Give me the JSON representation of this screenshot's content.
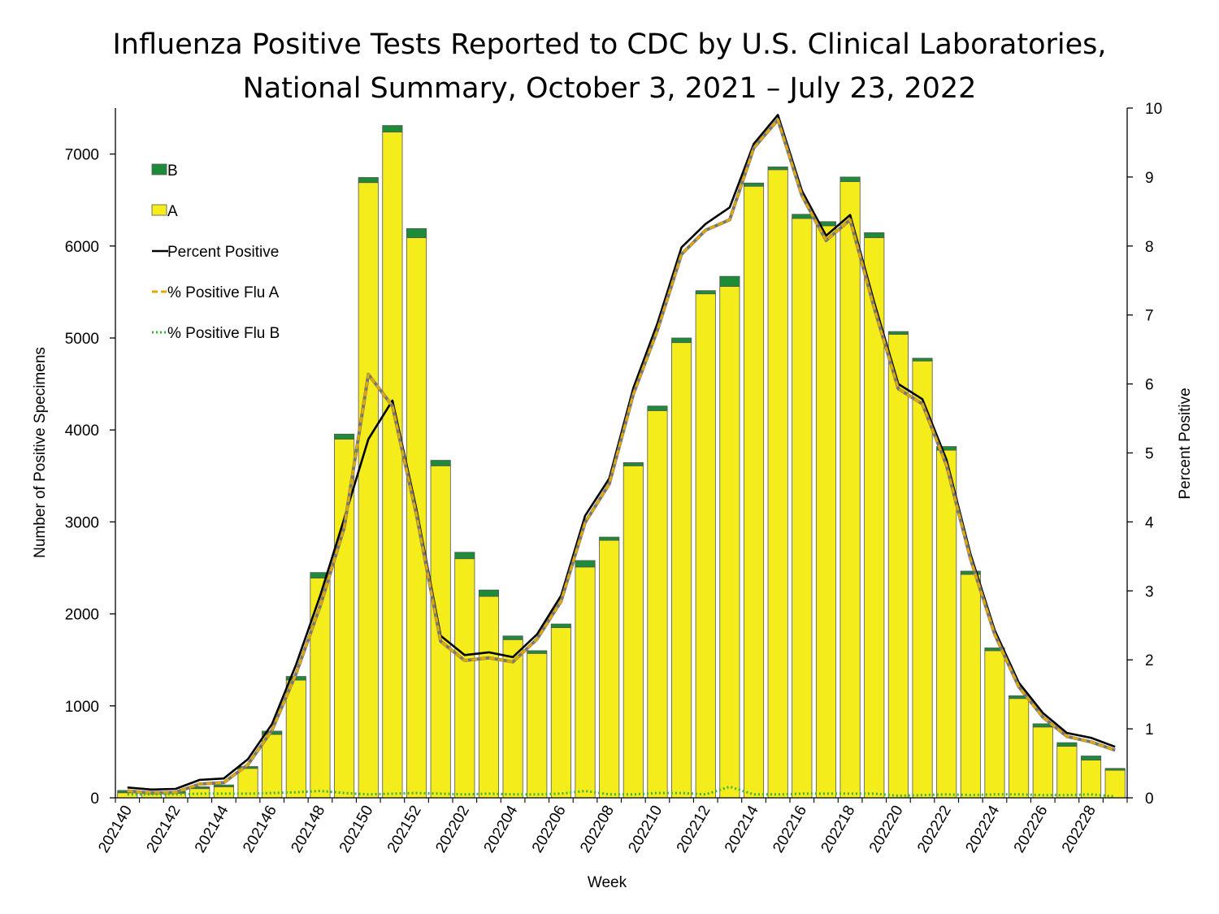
{
  "chart_data": {
    "type": "bar",
    "title_line1": "Influenza Positive Tests Reported to CDC by U.S. Clinical Laboratories,",
    "title_line2": "National Summary, October 3, 2021 – July 23, 2022",
    "xlabel": "Week",
    "ylabel": "Number of Positive Specimens",
    "y2label": "Percent Positive",
    "ylim": [
      0,
      7500
    ],
    "y2lim": [
      0,
      10
    ],
    "y_ticks": [
      0,
      1000,
      2000,
      3000,
      4000,
      5000,
      6000,
      7000
    ],
    "y2_ticks": [
      0,
      1,
      2,
      3,
      4,
      5,
      6,
      7,
      8,
      9,
      10
    ],
    "weeks": [
      "202140",
      "202141",
      "202142",
      "202143",
      "202144",
      "202145",
      "202146",
      "202147",
      "202148",
      "202149",
      "202150",
      "202151",
      "202152",
      "202201",
      "202202",
      "202203",
      "202204",
      "202205",
      "202206",
      "202207",
      "202208",
      "202209",
      "202210",
      "202211",
      "202212",
      "202213",
      "202214",
      "202215",
      "202216",
      "202217",
      "202218",
      "202219",
      "202220",
      "202221",
      "202222",
      "202223",
      "202224",
      "202225",
      "202226",
      "202227",
      "202228",
      "202229"
    ],
    "x_tick_labels": [
      "202140",
      "202142",
      "202144",
      "202146",
      "202148",
      "202150",
      "202152",
      "202202",
      "202204",
      "202206",
      "202208",
      "202210",
      "202212",
      "202214",
      "202216",
      "202218",
      "202220",
      "202222",
      "202224",
      "202226",
      "202228"
    ],
    "legend": {
      "placement": "top-left"
    },
    "series": [
      {
        "name": "B",
        "kind": "bar-stacked",
        "color": "#1e8b3a",
        "values": [
          25,
          22,
          20,
          20,
          20,
          20,
          35,
          40,
          60,
          55,
          55,
          70,
          100,
          60,
          70,
          70,
          40,
          30,
          40,
          70,
          35,
          35,
          50,
          50,
          35,
          110,
          35,
          30,
          45,
          45,
          50,
          55,
          30,
          30,
          40,
          35,
          30,
          30,
          35,
          40,
          45,
          20
        ]
      },
      {
        "name": "A",
        "kind": "bar-stacked",
        "color": "#f5ec1c",
        "values": [
          55,
          48,
          50,
          100,
          120,
          320,
          690,
          1280,
          2390,
          3900,
          6690,
          7240,
          6090,
          3610,
          2600,
          2190,
          1720,
          1570,
          1850,
          2510,
          2800,
          3610,
          4210,
          4950,
          5480,
          5560,
          6650,
          6830,
          6300,
          6220,
          6700,
          6090,
          5040,
          4750,
          3780,
          2430,
          1600,
          1080,
          770,
          560,
          410,
          300
        ]
      },
      {
        "name": "Percent Positive",
        "kind": "line",
        "color": "#000000",
        "values": [
          0.15,
          0.12,
          0.13,
          0.26,
          0.28,
          0.56,
          1.07,
          1.93,
          2.93,
          4.05,
          5.2,
          5.76,
          4.18,
          2.35,
          2.07,
          2.11,
          2.04,
          2.37,
          2.93,
          4.09,
          4.63,
          5.94,
          6.88,
          7.98,
          8.32,
          8.56,
          9.48,
          9.9,
          8.8,
          8.15,
          8.45,
          7.18,
          6.0,
          5.78,
          4.9,
          3.53,
          2.43,
          1.67,
          1.23,
          0.94,
          0.87,
          0.74
        ]
      },
      {
        "name": "% Positive Flu A",
        "kind": "line-dashed",
        "color": "#e0a800",
        "values": [
          0.1,
          0.07,
          0.08,
          0.2,
          0.22,
          0.48,
          0.98,
          1.8,
          2.78,
          3.92,
          6.14,
          5.68,
          4.1,
          2.27,
          1.99,
          2.03,
          1.97,
          2.3,
          2.85,
          3.99,
          4.55,
          5.85,
          6.78,
          7.88,
          8.23,
          8.38,
          9.42,
          9.83,
          8.73,
          8.08,
          8.38,
          7.1,
          5.93,
          5.71,
          4.82,
          3.46,
          2.37,
          1.61,
          1.17,
          0.89,
          0.81,
          0.69
        ]
      },
      {
        "name": "% Positive Flu B",
        "kind": "line-dotted",
        "color": "#3cb43c",
        "values": [
          0.05,
          0.05,
          0.05,
          0.06,
          0.06,
          0.06,
          0.07,
          0.08,
          0.1,
          0.07,
          0.05,
          0.06,
          0.07,
          0.06,
          0.05,
          0.06,
          0.05,
          0.05,
          0.06,
          0.1,
          0.05,
          0.05,
          0.07,
          0.07,
          0.05,
          0.16,
          0.05,
          0.05,
          0.06,
          0.06,
          0.06,
          0.06,
          0.03,
          0.04,
          0.05,
          0.04,
          0.05,
          0.05,
          0.04,
          0.04,
          0.05,
          0.02
        ]
      }
    ]
  }
}
